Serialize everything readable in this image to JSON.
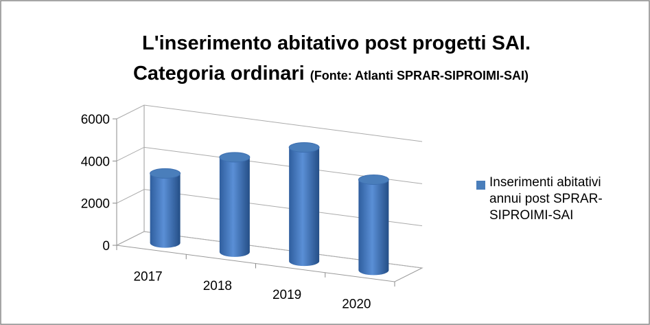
{
  "chart_data": {
    "type": "bar3d",
    "title": "L'inserimento abitativo post progetti SAI.",
    "title_line2": "Categoria ordinari",
    "subtitle": "(Fonte: Atlanti SPRAR-SIPROIMI-SAI)",
    "categories": [
      "2017",
      "2018",
      "2019",
      "2020"
    ],
    "series": [
      {
        "name": "Inserimenti abitativi annui post SPRAR-SIPROIMI-SAI",
        "color": "#4a7ebb",
        "values": [
          3300,
          4500,
          5400,
          4300
        ]
      }
    ],
    "ylim": [
      0,
      6000
    ],
    "yticks": [
      0,
      2000,
      4000,
      6000
    ],
    "grid": true,
    "legend": "right"
  }
}
